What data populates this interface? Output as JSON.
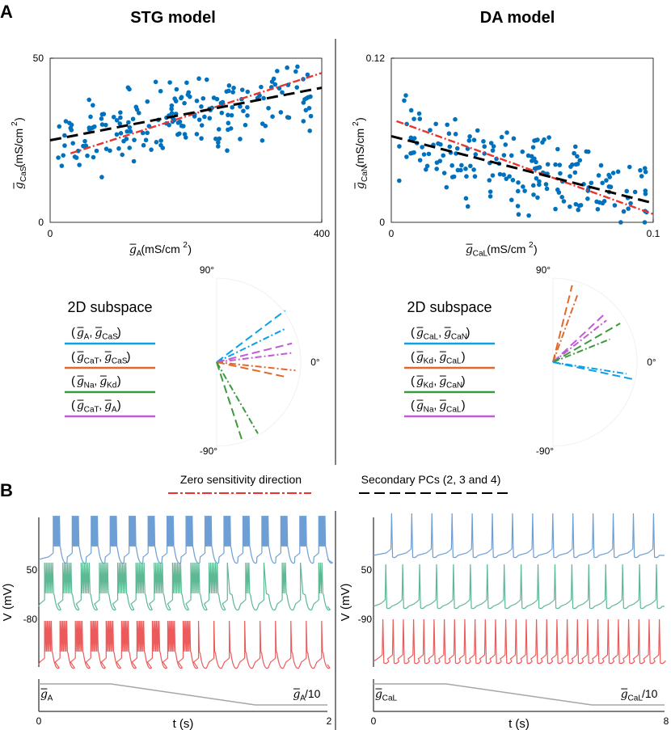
{
  "panel_labels": {
    "a": "A",
    "b": "B"
  },
  "titles": {
    "stg": "STG model",
    "da": "DA model"
  },
  "colors": {
    "scatter": "#0072BD",
    "zero_sensitivity": "#E8342E",
    "secondary": "#000000",
    "blue": "#0BA0E8",
    "orange": "#E06A2D",
    "green": "#3C9A3C",
    "purple": "#C25BD6",
    "trace_blue": "#6E9FD4",
    "trace_green": "#5DB894",
    "trace_red": "#EC5B5B",
    "ramp": "#A6A6A6"
  },
  "stg_axes": {
    "y_tick_top": "50",
    "y_tick_bottom": "0",
    "x_tick_left": "0",
    "x_tick_right": "400",
    "ylabel_symbol": "g",
    "ylabel_sub": "CaS",
    "ylabel_unit": " (mS/cm",
    "xlabel_symbol": "g",
    "xlabel_sub": "A",
    "xlabel_unit": " (mS/cm",
    "unit_sup": "2",
    "unit_close": ")"
  },
  "da_axes": {
    "y_tick_top": "0.12",
    "y_tick_bottom": "0",
    "x_tick_left": "0",
    "x_tick_right": "0.1",
    "ylabel_symbol": "g",
    "ylabel_sub": "CaN",
    "ylabel_unit": " (mS/cm",
    "xlabel_symbol": "g",
    "xlabel_sub": "CaL",
    "xlabel_unit": " (mS/cm",
    "unit_sup": "2",
    "unit_close": ")"
  },
  "subspace_title": "2D subspace",
  "stg_subspaces": [
    {
      "a": "A",
      "b": "CaS",
      "color": "blue"
    },
    {
      "a": "CaT",
      "b": "CaS",
      "color": "orange"
    },
    {
      "a": "Na",
      "b": "Kd",
      "color": "green"
    },
    {
      "a": "CaT",
      "b": "A",
      "color": "purple"
    }
  ],
  "da_subspaces": [
    {
      "a": "CaL",
      "b": "CaN",
      "color": "blue"
    },
    {
      "a": "Kd",
      "b": "CaL",
      "color": "orange"
    },
    {
      "a": "Kd",
      "b": "CaN",
      "color": "green"
    },
    {
      "a": "Na",
      "b": "CaL",
      "color": "purple"
    }
  ],
  "polar": {
    "top": "90°",
    "right": "0°",
    "bottom": "-90°"
  },
  "legend": {
    "zero": "Zero sensitivity direction",
    "secondary": "Secondary PCs (2, 3 and 4)"
  },
  "stg_traces": {
    "ylabel": "V (mV)",
    "y_top": "50",
    "y_bottom": "-80",
    "ramp_start_sym": "g",
    "ramp_start_sub": "A",
    "ramp_end_sym": "g",
    "ramp_end_sub": "A",
    "ramp_end_suffix": "/10",
    "x_left": "0",
    "x_right": "2",
    "xlabel": "t (s)"
  },
  "da_traces": {
    "ylabel": "V (mV)",
    "y_top": "50",
    "y_bottom": "-90",
    "ramp_start_sym": "g",
    "ramp_start_sub": "CaL",
    "ramp_end_sym": "g",
    "ramp_end_sub": "CaL",
    "ramp_end_suffix": "/10",
    "x_left": "0",
    "x_right": "8",
    "xlabel": "t (s)"
  },
  "chart_data": [
    {
      "type": "scatter",
      "title": "STG model",
      "xlabel": "g_A (mS/cm2)",
      "ylabel": "g_CaS (mS/cm2)",
      "xlim": [
        0,
        400
      ],
      "ylim": [
        0,
        50
      ],
      "series": [
        {
          "name": "Zero sensitivity direction",
          "style": "dash-dot",
          "x": [
            30,
            400
          ],
          "y": [
            21,
            45.5
          ]
        },
        {
          "name": "Secondary PCs (2, 3 and 4)",
          "style": "dashed",
          "x": [
            0,
            400
          ],
          "y": [
            25,
            41
          ]
        }
      ],
      "points_seed": 7,
      "n_points": 190,
      "trend": [
        25,
        0.04
      ],
      "spread": 7.5
    },
    {
      "type": "scatter",
      "title": "DA model",
      "xlabel": "g_CaL (mS/cm2)",
      "ylabel": "g_CaN (mS/cm2)",
      "xlim": [
        0,
        0.1
      ],
      "ylim": [
        0,
        0.12
      ],
      "series": [
        {
          "name": "Zero sensitivity direction",
          "style": "dash-dot",
          "x": [
            0.002,
            0.1
          ],
          "y": [
            0.074,
            0.006
          ]
        },
        {
          "name": "Secondary PCs (2, 3 and 4)",
          "style": "dashed",
          "x": [
            0,
            0.1
          ],
          "y": [
            0.063,
            0.014
          ]
        }
      ],
      "points_seed": 19,
      "n_points": 190,
      "trend": [
        0.063,
        -0.45
      ],
      "spread": 0.022
    }
  ]
}
